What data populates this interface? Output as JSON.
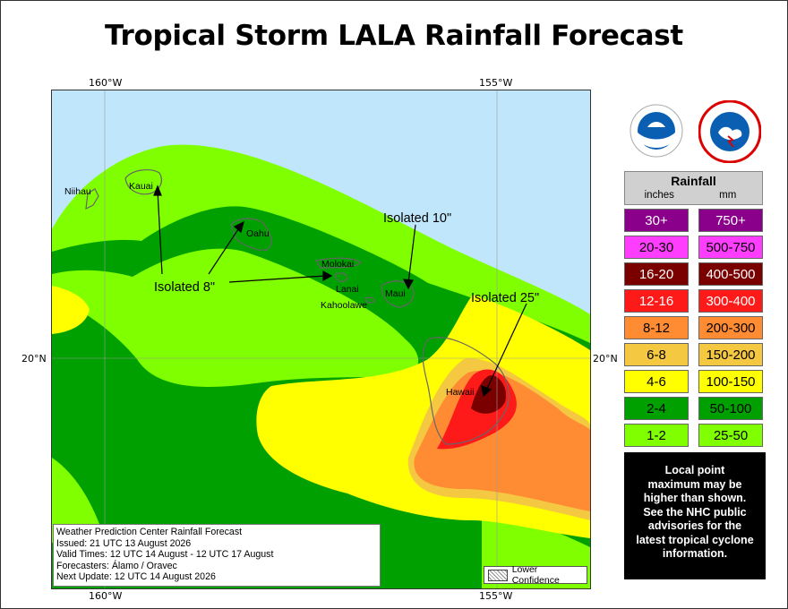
{
  "title": "Tropical Storm LALA Rainfall Forecast",
  "axes": {
    "lon_labels": [
      "160°W",
      "155°W"
    ],
    "lat_label": "20°N"
  },
  "islands": [
    "Niihau",
    "Kauai",
    "Oahu",
    "Molokai",
    "Lanai",
    "Maui",
    "Kahoolawe",
    "Hawaii"
  ],
  "annotations": [
    "Isolated 8\"",
    "Isolated 10\"",
    "Isolated 25\""
  ],
  "info_box": [
    "Weather Prediction Center Rainfall Forecast",
    "Issued: 21 UTC 13 August 2026",
    "Valid Times: 12 UTC 14 August - 12 UTC 17 August",
    "Forecasters: Álamo / Oravec",
    "Next Update: 12 UTC 14 August 2026"
  ],
  "low_confidence_label": "Lower Confidence",
  "legend": {
    "title": "Rainfall",
    "unit_in": "inches",
    "unit_mm": "mm",
    "rows": [
      {
        "in": "30+",
        "mm": "750+",
        "color": "#8b008b",
        "text": "#ffffff"
      },
      {
        "in": "20-30",
        "mm": "500-750",
        "color": "#ff3dff",
        "text": "#000000"
      },
      {
        "in": "16-20",
        "mm": "400-500",
        "color": "#7a0000",
        "text": "#ffffff"
      },
      {
        "in": "12-16",
        "mm": "300-400",
        "color": "#ff1a1a",
        "text": "#ffffff"
      },
      {
        "in": "8-12",
        "mm": "200-300",
        "color": "#ff8c33",
        "text": "#000000"
      },
      {
        "in": "6-8",
        "mm": "150-200",
        "color": "#f5c842",
        "text": "#000000"
      },
      {
        "in": "4-6",
        "mm": "100-150",
        "color": "#ffff00",
        "text": "#000000"
      },
      {
        "in": "2-4",
        "mm": "50-100",
        "color": "#00a000",
        "text": "#000000"
      },
      {
        "in": "1-2",
        "mm": "25-50",
        "color": "#7fff00",
        "text": "#000000"
      }
    ]
  },
  "disclaimer": [
    "Local point",
    "maximum may be",
    "higher than shown.",
    "See the NHC public",
    "advisories for the",
    "latest tropical cyclone",
    "information."
  ],
  "logos": [
    "noaa-logo",
    "nws-logo"
  ]
}
